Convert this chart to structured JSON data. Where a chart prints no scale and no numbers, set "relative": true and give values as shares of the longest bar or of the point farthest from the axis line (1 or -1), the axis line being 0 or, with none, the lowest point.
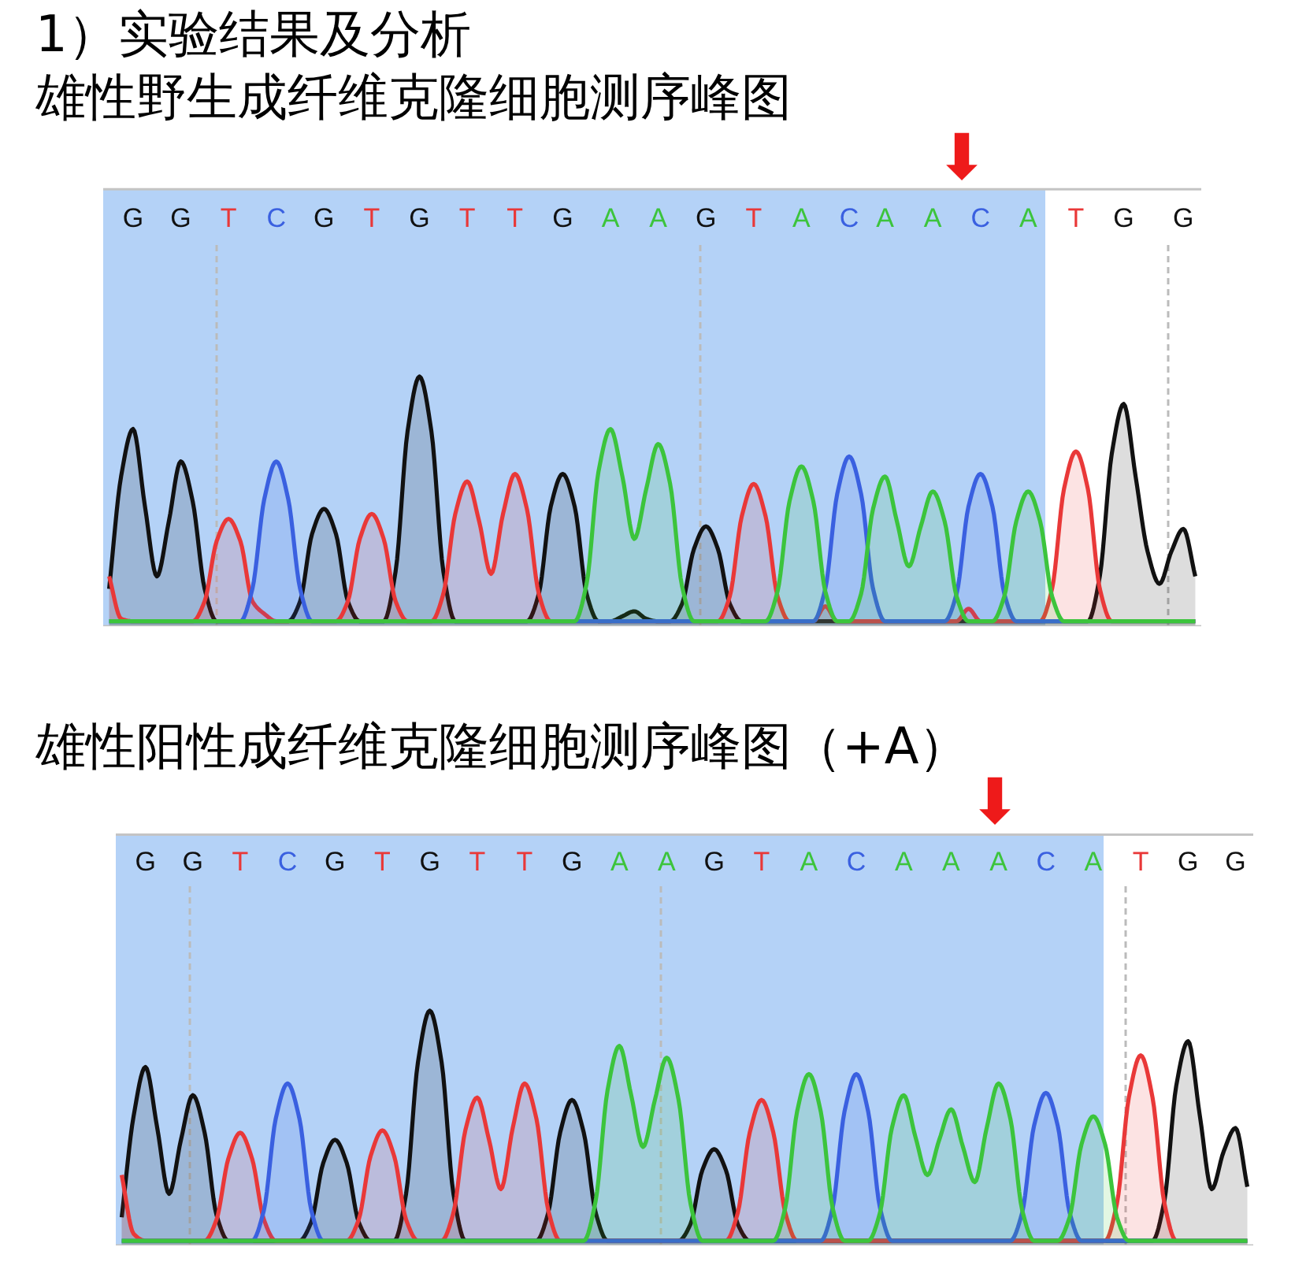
{
  "chart_data": [
    {
      "type": "area",
      "title": "1）实验结果及分析",
      "subtitle": "雄性野生成纤维克隆细胞测序峰图",
      "relative": true,
      "categories": [
        null,
        null,
        "G",
        null,
        null,
        null,
        "G",
        null,
        null,
        null,
        "T",
        null,
        null,
        null,
        "C",
        null,
        null,
        null,
        "G",
        null,
        null,
        null,
        "T",
        null,
        null,
        null,
        "G",
        null,
        null,
        null,
        "T",
        null,
        null,
        null,
        "T",
        null,
        null,
        null,
        "G",
        null,
        null,
        null,
        "A",
        null,
        null,
        null,
        "A",
        null,
        null,
        null,
        "G",
        null,
        null,
        null,
        "T",
        null,
        null,
        null,
        "A",
        null,
        null,
        null,
        "C",
        null,
        null,
        "A",
        null,
        null,
        null,
        "A",
        null,
        null,
        null,
        "C",
        null,
        null,
        null,
        "A",
        null,
        null,
        null,
        "T",
        null,
        null,
        null,
        "G",
        null,
        null,
        null,
        null,
        "G",
        null
      ],
      "annotations": [
        "⬇"
      ],
      "series": [
        {
          "color": "#111111",
          "values": [
            0.15,
            0.6,
            0.79,
            0.48,
            0.2,
            0.42,
            0.66,
            0.5,
            0.15,
            0.02,
            0.02,
            0.02,
            0.02,
            0.02,
            0.02,
            0.02,
            0.1,
            0.37,
            0.47,
            0.37,
            0.1,
            0.02,
            0.02,
            0.02,
            0.22,
            0.78,
            1.0,
            0.78,
            0.22,
            0.02,
            0.02,
            0.02,
            0.02,
            0.02,
            0.02,
            0.02,
            0.13,
            0.48,
            0.61,
            0.48,
            0.13,
            0.02,
            0.02,
            0.04,
            0.06,
            0.03,
            0.02,
            0.02,
            0.09,
            0.31,
            0.4,
            0.31,
            0.09,
            0.02,
            0.02,
            0.02,
            0.02,
            0.02,
            0.02,
            0.02,
            0.02,
            0.02,
            0.02,
            0.02,
            0.02,
            0.02,
            0.02,
            0.02,
            0.02,
            0.02,
            0.02,
            0.02,
            0.02,
            0.02,
            0.02,
            0.02,
            0.02,
            0.02,
            0.02,
            0.02,
            0.02,
            0.02,
            0.02,
            0.2,
            0.69,
            0.89,
            0.6,
            0.3,
            0.17,
            0.3,
            0.39,
            0.2
          ]
        },
        {
          "color": "#e93838",
          "values": [
            0.2,
            0.03,
            0.02,
            0.02,
            0.02,
            0.02,
            0.02,
            0.02,
            0.1,
            0.34,
            0.43,
            0.34,
            0.1,
            0.05,
            0.02,
            0.02,
            0.02,
            0.02,
            0.02,
            0.02,
            0.1,
            0.35,
            0.45,
            0.35,
            0.1,
            0.02,
            0.02,
            0.02,
            0.13,
            0.45,
            0.58,
            0.42,
            0.21,
            0.45,
            0.61,
            0.47,
            0.13,
            0.02,
            0.02,
            0.02,
            0.02,
            0.02,
            0.02,
            0.02,
            0.02,
            0.02,
            0.02,
            0.02,
            0.02,
            0.02,
            0.02,
            0.02,
            0.12,
            0.44,
            0.57,
            0.44,
            0.12,
            0.02,
            0.02,
            0.02,
            0.08,
            0.02,
            0.02,
            0.02,
            0.02,
            0.02,
            0.02,
            0.02,
            0.02,
            0.02,
            0.02,
            0.02,
            0.07,
            0.02,
            0.02,
            0.02,
            0.02,
            0.02,
            0.02,
            0.15,
            0.55,
            0.7,
            0.55,
            0.15,
            0.02,
            0.02,
            0.02,
            0.02,
            0.02,
            0.02,
            0.02,
            0.02
          ]
        },
        {
          "color": "#3a60e0",
          "values": [
            0.02,
            0.02,
            0.02,
            0.02,
            0.02,
            0.02,
            0.02,
            0.02,
            0.02,
            0.02,
            0.02,
            0.02,
            0.15,
            0.51,
            0.66,
            0.51,
            0.15,
            0.02,
            0.02,
            0.02,
            0.02,
            0.02,
            0.02,
            0.02,
            0.02,
            0.02,
            0.02,
            0.02,
            0.02,
            0.02,
            0.02,
            0.02,
            0.02,
            0.02,
            0.02,
            0.02,
            0.02,
            0.02,
            0.02,
            0.02,
            0.02,
            0.02,
            0.02,
            0.02,
            0.02,
            0.02,
            0.02,
            0.02,
            0.02,
            0.02,
            0.02,
            0.02,
            0.02,
            0.02,
            0.02,
            0.02,
            0.02,
            0.02,
            0.02,
            0.02,
            0.15,
            0.53,
            0.68,
            0.53,
            0.15,
            0.02,
            0.02,
            0.02,
            0.02,
            0.02,
            0.02,
            0.13,
            0.48,
            0.61,
            0.48,
            0.13,
            0.02,
            0.02,
            0.02,
            0.02,
            0.02,
            0.02,
            0.02,
            0.02,
            0.02,
            0.02,
            0.02,
            0.02,
            0.02,
            0.02,
            0.02,
            0.02
          ]
        },
        {
          "color": "#3cc43c",
          "values": [
            0.02,
            0.02,
            0.02,
            0.02,
            0.02,
            0.02,
            0.02,
            0.02,
            0.02,
            0.02,
            0.02,
            0.02,
            0.02,
            0.02,
            0.02,
            0.02,
            0.02,
            0.02,
            0.02,
            0.02,
            0.02,
            0.02,
            0.02,
            0.02,
            0.02,
            0.02,
            0.02,
            0.02,
            0.02,
            0.02,
            0.02,
            0.02,
            0.02,
            0.02,
            0.02,
            0.02,
            0.02,
            0.02,
            0.02,
            0.02,
            0.17,
            0.62,
            0.79,
            0.6,
            0.35,
            0.55,
            0.73,
            0.57,
            0.16,
            0.02,
            0.02,
            0.02,
            0.02,
            0.02,
            0.02,
            0.02,
            0.14,
            0.5,
            0.64,
            0.5,
            0.14,
            0.02,
            0.02,
            0.13,
            0.47,
            0.6,
            0.42,
            0.24,
            0.4,
            0.54,
            0.42,
            0.12,
            0.02,
            0.02,
            0.02,
            0.12,
            0.42,
            0.54,
            0.42,
            0.12,
            0.02,
            0.02,
            0.02,
            0.02,
            0.02,
            0.02,
            0.02,
            0.02,
            0.02,
            0.02,
            0.02,
            0.02
          ]
        }
      ]
    },
    {
      "type": "area",
      "title": "雄性阳性成纤维克隆细胞测序峰图（+A）",
      "relative": true,
      "categories": [
        null,
        null,
        "G",
        null,
        null,
        null,
        "G",
        null,
        null,
        null,
        "T",
        null,
        null,
        null,
        "C",
        null,
        null,
        null,
        "G",
        null,
        null,
        null,
        "T",
        null,
        null,
        null,
        "G",
        null,
        null,
        null,
        "T",
        null,
        null,
        null,
        "T",
        null,
        null,
        null,
        "G",
        null,
        null,
        null,
        "A",
        null,
        null,
        null,
        "A",
        null,
        null,
        null,
        "G",
        null,
        null,
        null,
        "T",
        null,
        null,
        null,
        "A",
        null,
        null,
        null,
        "C",
        null,
        null,
        null,
        "A",
        null,
        null,
        null,
        "A",
        null,
        null,
        null,
        "A",
        null,
        null,
        null,
        "C",
        null,
        null,
        null,
        "A",
        null,
        null,
        null,
        "T",
        null,
        null,
        null,
        "G",
        null,
        null,
        null,
        "G",
        null
      ],
      "annotations": [
        "⬇"
      ],
      "series": [
        {
          "color": "#111111",
          "values": [
            0.12,
            0.55,
            0.76,
            0.5,
            0.22,
            0.45,
            0.64,
            0.48,
            0.13,
            0.02,
            0.02,
            0.02,
            0.02,
            0.02,
            0.02,
            0.02,
            0.1,
            0.35,
            0.45,
            0.35,
            0.1,
            0.02,
            0.02,
            0.02,
            0.22,
            0.78,
            1.0,
            0.78,
            0.22,
            0.02,
            0.02,
            0.02,
            0.02,
            0.02,
            0.02,
            0.02,
            0.14,
            0.48,
            0.62,
            0.48,
            0.14,
            0.02,
            0.02,
            0.02,
            0.02,
            0.02,
            0.02,
            0.02,
            0.09,
            0.32,
            0.41,
            0.32,
            0.09,
            0.02,
            0.02,
            0.02,
            0.02,
            0.02,
            0.02,
            0.02,
            0.02,
            0.02,
            0.02,
            0.02,
            0.02,
            0.02,
            0.02,
            0.02,
            0.02,
            0.02,
            0.02,
            0.02,
            0.02,
            0.02,
            0.02,
            0.02,
            0.02,
            0.02,
            0.02,
            0.02,
            0.02,
            0.02,
            0.02,
            0.02,
            0.02,
            0.02,
            0.02,
            0.02,
            0.19,
            0.68,
            0.87,
            0.55,
            0.24,
            0.4,
            0.5,
            0.25
          ]
        },
        {
          "color": "#e93838",
          "values": [
            0.3,
            0.05,
            0.02,
            0.02,
            0.02,
            0.02,
            0.02,
            0.02,
            0.11,
            0.37,
            0.48,
            0.37,
            0.11,
            0.02,
            0.02,
            0.02,
            0.02,
            0.02,
            0.02,
            0.02,
            0.11,
            0.38,
            0.49,
            0.38,
            0.11,
            0.02,
            0.02,
            0.02,
            0.14,
            0.49,
            0.63,
            0.45,
            0.24,
            0.5,
            0.69,
            0.54,
            0.15,
            0.02,
            0.02,
            0.02,
            0.02,
            0.02,
            0.02,
            0.02,
            0.02,
            0.02,
            0.02,
            0.02,
            0.02,
            0.02,
            0.02,
            0.02,
            0.14,
            0.48,
            0.62,
            0.48,
            0.14,
            0.02,
            0.02,
            0.02,
            0.02,
            0.02,
            0.02,
            0.02,
            0.02,
            0.02,
            0.02,
            0.02,
            0.02,
            0.02,
            0.02,
            0.02,
            0.02,
            0.02,
            0.02,
            0.02,
            0.02,
            0.02,
            0.02,
            0.02,
            0.02,
            0.02,
            0.02,
            0.02,
            0.18,
            0.63,
            0.81,
            0.63,
            0.18,
            0.02,
            0.02,
            0.02,
            0.02,
            0.02,
            0.02,
            0.02
          ]
        },
        {
          "color": "#3a60e0",
          "values": [
            0.02,
            0.02,
            0.02,
            0.02,
            0.02,
            0.02,
            0.02,
            0.02,
            0.02,
            0.02,
            0.02,
            0.02,
            0.15,
            0.54,
            0.69,
            0.54,
            0.15,
            0.02,
            0.02,
            0.02,
            0.02,
            0.02,
            0.02,
            0.02,
            0.02,
            0.02,
            0.02,
            0.02,
            0.02,
            0.02,
            0.02,
            0.02,
            0.02,
            0.02,
            0.02,
            0.02,
            0.02,
            0.02,
            0.02,
            0.02,
            0.02,
            0.02,
            0.02,
            0.02,
            0.02,
            0.02,
            0.02,
            0.02,
            0.02,
            0.02,
            0.02,
            0.02,
            0.02,
            0.02,
            0.02,
            0.02,
            0.02,
            0.02,
            0.02,
            0.02,
            0.16,
            0.57,
            0.73,
            0.57,
            0.16,
            0.02,
            0.02,
            0.02,
            0.02,
            0.02,
            0.02,
            0.02,
            0.02,
            0.02,
            0.02,
            0.02,
            0.14,
            0.51,
            0.65,
            0.51,
            0.14,
            0.02,
            0.02,
            0.02,
            0.02,
            0.02,
            0.02,
            0.02,
            0.02,
            0.02,
            0.02,
            0.02,
            0.02,
            0.02,
            0.02,
            0.02
          ]
        },
        {
          "color": "#3cc43c",
          "values": [
            0.02,
            0.02,
            0.02,
            0.02,
            0.02,
            0.02,
            0.02,
            0.02,
            0.02,
            0.02,
            0.02,
            0.02,
            0.02,
            0.02,
            0.02,
            0.02,
            0.02,
            0.02,
            0.02,
            0.02,
            0.02,
            0.02,
            0.02,
            0.02,
            0.02,
            0.02,
            0.02,
            0.02,
            0.02,
            0.02,
            0.02,
            0.02,
            0.02,
            0.02,
            0.02,
            0.02,
            0.02,
            0.02,
            0.02,
            0.02,
            0.19,
            0.66,
            0.85,
            0.64,
            0.42,
            0.62,
            0.8,
            0.62,
            0.18,
            0.02,
            0.02,
            0.02,
            0.02,
            0.02,
            0.02,
            0.02,
            0.16,
            0.57,
            0.73,
            0.57,
            0.16,
            0.02,
            0.02,
            0.02,
            0.14,
            0.5,
            0.64,
            0.46,
            0.3,
            0.45,
            0.58,
            0.42,
            0.27,
            0.5,
            0.69,
            0.54,
            0.15,
            0.02,
            0.02,
            0.02,
            0.12,
            0.43,
            0.55,
            0.43,
            0.12,
            0.02,
            0.02,
            0.02,
            0.02,
            0.02,
            0.02,
            0.02,
            0.02,
            0.02,
            0.02,
            0.02
          ]
        }
      ]
    }
  ]
}
